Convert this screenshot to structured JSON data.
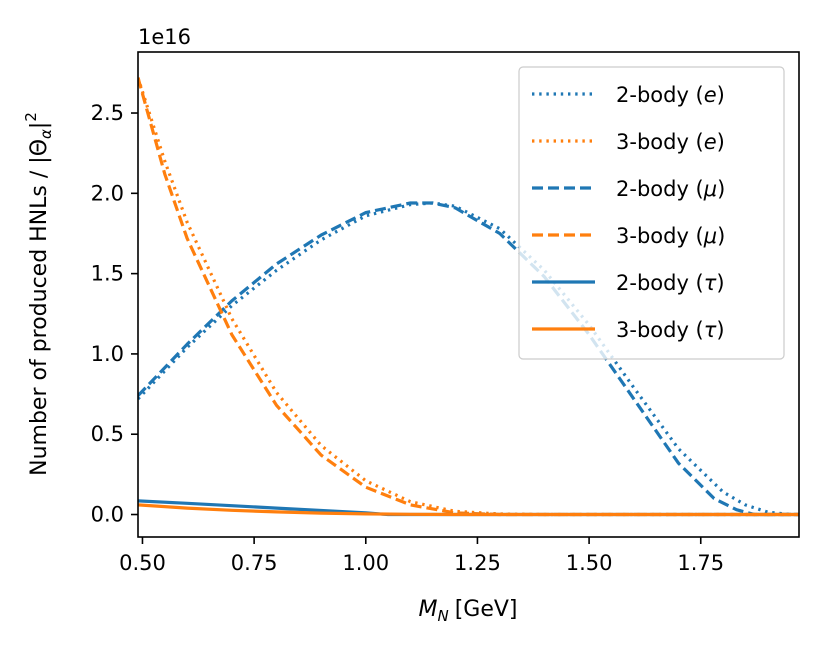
{
  "chart_data": {
    "type": "line",
    "title": "",
    "xlabel_symbol": "M",
    "xlabel_subscript": "N",
    "xlabel_unit": "[GeV]",
    "ylabel_main": "Number of produced HNLs / |Θ",
    "ylabel_subscript": "α",
    "ylabel_tail": "|",
    "ylabel_superscript": "2",
    "offset_label": "1e16",
    "xlim": [
      0.49,
      1.97
    ],
    "ylim": [
      -0.14,
      2.88
    ],
    "y_scale": 1e+16,
    "xticks": [
      0.5,
      0.75,
      1.0,
      1.25,
      1.5,
      1.75
    ],
    "xtick_labels": [
      "0.50",
      "0.75",
      "1.00",
      "1.25",
      "1.50",
      "1.75"
    ],
    "yticks": [
      0.0,
      0.5,
      1.0,
      1.5,
      2.0,
      2.5
    ],
    "ytick_labels": [
      "0.0",
      "0.5",
      "1.0",
      "1.5",
      "2.0",
      "2.5"
    ],
    "legend_position": "upper right",
    "series": [
      {
        "name": "2-body (e)",
        "label_text": "2-body (",
        "label_symbol": "e",
        "label_close": ")",
        "color": "#1f77b4",
        "style": "dotted",
        "x": [
          0.49,
          0.6,
          0.7,
          0.8,
          0.9,
          1.0,
          1.1,
          1.15,
          1.2,
          1.3,
          1.4,
          1.5,
          1.6,
          1.7,
          1.8,
          1.85,
          1.9,
          1.95,
          1.97
        ],
        "y": [
          0.72,
          1.04,
          1.3,
          1.52,
          1.71,
          1.86,
          1.93,
          1.94,
          1.92,
          1.78,
          1.52,
          1.18,
          0.79,
          0.41,
          0.14,
          0.06,
          0.015,
          0.0,
          0.0
        ]
      },
      {
        "name": "3-body (e)",
        "label_text": "3-body (",
        "label_symbol": "e",
        "label_close": ")",
        "color": "#ff7f0e",
        "style": "dotted",
        "x": [
          0.49,
          0.55,
          0.6,
          0.7,
          0.8,
          0.9,
          1.0,
          1.1,
          1.2,
          1.3,
          1.4,
          1.5,
          1.97
        ],
        "y": [
          2.72,
          2.2,
          1.82,
          1.22,
          0.76,
          0.43,
          0.21,
          0.08,
          0.02,
          0.003,
          0.0,
          0.0,
          0.0
        ]
      },
      {
        "name": "2-body (μ)",
        "label_text": "2-body (",
        "label_symbol": "μ",
        "label_close": ")",
        "color": "#1f77b4",
        "style": "dashed",
        "x": [
          0.49,
          0.6,
          0.7,
          0.8,
          0.9,
          1.0,
          1.1,
          1.15,
          1.2,
          1.3,
          1.4,
          1.5,
          1.6,
          1.7,
          1.78,
          1.83,
          1.87,
          1.97
        ],
        "y": [
          0.74,
          1.06,
          1.33,
          1.56,
          1.74,
          1.88,
          1.94,
          1.94,
          1.91,
          1.75,
          1.48,
          1.12,
          0.72,
          0.32,
          0.1,
          0.03,
          0.0,
          0.0
        ]
      },
      {
        "name": "3-body (μ)",
        "label_text": "3-body (",
        "label_symbol": "μ",
        "label_close": ")",
        "color": "#ff7f0e",
        "style": "dashed",
        "x": [
          0.49,
          0.55,
          0.6,
          0.7,
          0.8,
          0.9,
          1.0,
          1.1,
          1.2,
          1.3,
          1.4,
          1.97
        ],
        "y": [
          2.72,
          2.12,
          1.72,
          1.12,
          0.68,
          0.37,
          0.17,
          0.06,
          0.01,
          0.0,
          0.0,
          0.0
        ]
      },
      {
        "name": "2-body (τ)",
        "label_text": "2-body (",
        "label_symbol": "τ",
        "label_close": ")",
        "color": "#1f77b4",
        "style": "solid",
        "x": [
          0.49,
          0.6,
          0.7,
          0.8,
          0.9,
          1.0,
          1.05,
          1.97
        ],
        "y": [
          0.085,
          0.07,
          0.055,
          0.04,
          0.025,
          0.01,
          0.0,
          0.0
        ]
      },
      {
        "name": "3-body (τ)",
        "label_text": "3-body (",
        "label_symbol": "τ",
        "label_close": ")",
        "color": "#ff7f0e",
        "style": "solid",
        "x": [
          0.49,
          0.6,
          0.7,
          0.8,
          0.9,
          1.0,
          1.1,
          1.2,
          1.3,
          1.97
        ],
        "y": [
          0.06,
          0.04,
          0.026,
          0.016,
          0.009,
          0.004,
          0.0015,
          0.0004,
          0.0,
          0.0
        ]
      }
    ]
  }
}
